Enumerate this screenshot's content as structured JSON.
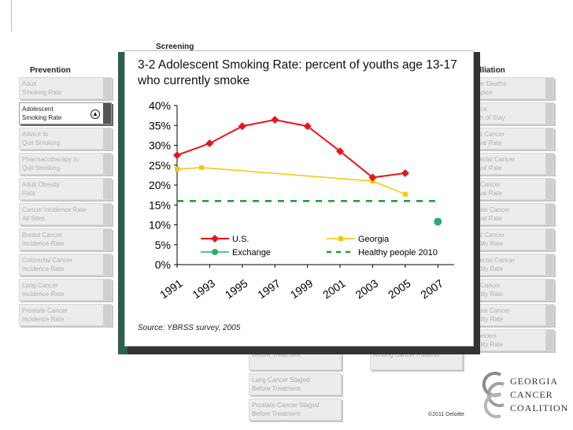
{
  "page": {
    "screening_title": "Screening",
    "prevention_title": "Prevention",
    "palliation_title": "alliation"
  },
  "prevention": [
    {
      "l1": "Adult",
      "l2": "Smoking Rate"
    },
    {
      "l1": "Adolescent",
      "l2": "Smoking Rate"
    },
    {
      "l1": "Advice to",
      "l2": "Quit Smoking"
    },
    {
      "l1": "Pharmacotherapy to",
      "l2": "Quit Smoking"
    },
    {
      "l1": "Adult Obesity",
      "l2": "Rats"
    },
    {
      "l1": "Cancer Incidence Rate",
      "l2": "All Sites"
    },
    {
      "l1": "Breast Cancer",
      "l2": "Incidence Rate"
    },
    {
      "l1": "Colorectal Cancer",
      "l2": "Incidence Rate"
    },
    {
      "l1": "Lung Cancer",
      "l2": "Incidence Rate"
    },
    {
      "l1": "Prostate Cancer",
      "l2": "Incidence Rate"
    }
  ],
  "palliation": [
    {
      "l1": "Cancer Deaths",
      "l2": "n Hospice"
    },
    {
      "l1": "Hospice",
      "l2": "Length of Stay"
    },
    {
      "l1": "Breast Cancer",
      "l2": "Survival Rate"
    },
    {
      "l1": "Colorectal Cancer",
      "l2": "Survival Rate"
    },
    {
      "l1": "Lung Cancer",
      "l2": "Survival Rate"
    },
    {
      "l1": "Prostate Cancer",
      "l2": "Survival Rate"
    },
    {
      "l1": "Breast Cancer",
      "l2": "Mortality Rate"
    },
    {
      "l1": "Colorectal Cancer",
      "l2": "Mortality Rate"
    },
    {
      "l1": "Lung Cancer",
      "l2": "Mortality Rate"
    },
    {
      "l1": "Prostate Cancer",
      "l2": "Mortality Rate"
    },
    {
      "l1": "All Cancers",
      "l2": "Mortality Rate"
    }
  ],
  "screening_bottom": [
    {
      "l1": "",
      "l2": "Before Treatment"
    },
    {
      "l1": "Lung Cancer Staged",
      "l2": "Before Treatment"
    },
    {
      "l1": "Prostate Cancer Staged",
      "l2": "Before Treatment"
    }
  ],
  "other_bottom": {
    "l1": "",
    "l2": "Among Cancer Patients"
  },
  "popup": {
    "title": "3-2 Adolescent Smoking Rate: percent of youths age 13-17 who currently smoke",
    "source": "Source: YBRSS survey, 2005"
  },
  "logo": {
    "line1": "GEORGIA",
    "line2": "CANCER",
    "line3": "COALITION"
  },
  "copyright": "©2011 Deloitte",
  "colors": {
    "us": "#e8141c",
    "georgia": "#f6c700",
    "exchange": "#2fa86e",
    "healthy": "#1e9b3a"
  },
  "chart_data": {
    "type": "line",
    "title": "3-2 Adolescent Smoking Rate: percent of youths age 13-17 who currently smoke",
    "x_ticks": [
      "1991",
      "1993",
      "1995",
      "1997",
      "1999",
      "2001",
      "2003",
      "2005",
      "2007"
    ],
    "xlim": [
      1991,
      2008
    ],
    "ylim": [
      0,
      40
    ],
    "y_ticks": [
      "0%",
      "5%",
      "10%",
      "15%",
      "20%",
      "25%",
      "30%",
      "35%",
      "40%"
    ],
    "grid": false,
    "legend": "inside-bottom",
    "series": [
      {
        "name": "U.S.",
        "x": [
          1991,
          1993,
          1995,
          1997,
          1999,
          2001,
          2003,
          2005
        ],
        "y": [
          27.5,
          30.5,
          34.8,
          36.4,
          34.8,
          28.5,
          21.9,
          23.0
        ]
      },
      {
        "name": "Georgia",
        "x": [
          1991,
          1992.5,
          2003,
          2005
        ],
        "y": [
          24.0,
          24.4,
          21.0,
          17.7
        ]
      },
      {
        "name": "Exchange",
        "x": [
          2007
        ],
        "y": [
          10.8
        ]
      },
      {
        "name": "Healthy people 2010",
        "x": [
          1991,
          2007
        ],
        "y": [
          16.0,
          16.0
        ]
      }
    ]
  }
}
